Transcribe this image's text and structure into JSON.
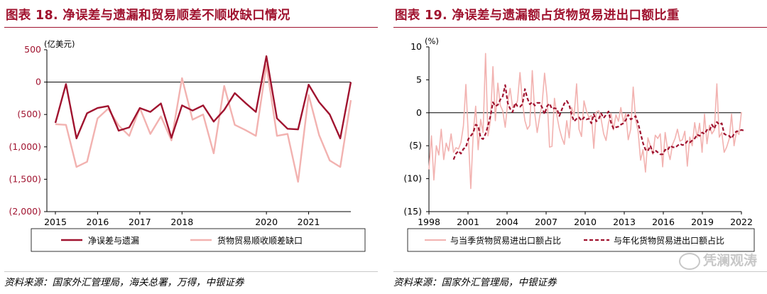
{
  "left": {
    "title": "图表 18. 净误差与遗漏和贸易顺差不顺收缺口情况",
    "source": "资料来源：国家外汇管理局，海关总署，万得，中银证券",
    "unit": "(亿美元)",
    "y_ticks": [
      "500",
      "0",
      "(500)",
      "(1,000)",
      "(1,500)",
      "(2,000)"
    ],
    "x_ticks": [
      "2015",
      "2016",
      "2017",
      "2018",
      "2020",
      "2021"
    ],
    "colors": {
      "series1": "#a0132f",
      "series2": "#f2b2b0",
      "axis_text": "#a0132f"
    }
  },
  "right": {
    "title": "图表 19. 净误差与遗漏额占货物贸易进出口额比重",
    "source": "资料来源：国家外汇管理局，中银证券",
    "unit": "(%)",
    "y_ticks": [
      "10",
      "5",
      "0",
      "(5)",
      "(10)",
      "(15)"
    ],
    "x_ticks": [
      "1998",
      "2001",
      "2004",
      "2007",
      "2010",
      "2013",
      "2016",
      "2019",
      "2022"
    ],
    "colors": {
      "series1": "#f2b2b0",
      "series2": "#a0132f"
    }
  },
  "watermark": "凭澜观涛",
  "chart_data": [
    {
      "type": "line",
      "ylim": [
        -2000,
        500
      ],
      "ylabel": "(亿美元)",
      "x": [
        "2015Q1",
        "2015Q2",
        "2015Q3",
        "2015Q4",
        "2016Q1",
        "2016Q2",
        "2016Q3",
        "2016Q4",
        "2017Q1",
        "2017Q2",
        "2017Q3",
        "2017Q4",
        "2018Q1",
        "2018Q2",
        "2018Q3",
        "2018Q4",
        "2019Q1",
        "2019Q2",
        "2019Q3",
        "2019Q4",
        "2020Q1",
        "2020Q2",
        "2020Q3",
        "2020Q4",
        "2021Q1",
        "2021Q2",
        "2021Q3",
        "2021Q4",
        "2022Q1"
      ],
      "series": [
        {
          "name": "净误差与遗漏",
          "values": [
            -630,
            -30,
            -870,
            -480,
            -400,
            -370,
            -750,
            -700,
            -400,
            -460,
            -330,
            -860,
            -360,
            -440,
            -360,
            -610,
            -430,
            -170,
            -320,
            -460,
            400,
            -560,
            -720,
            -730,
            -40,
            -310,
            -500,
            -870,
            0
          ]
        },
        {
          "name": "货物贸易顺收顺差缺口",
          "values": [
            -650,
            -660,
            -1310,
            -1230,
            -560,
            -410,
            -670,
            -830,
            -400,
            -800,
            -530,
            -900,
            60,
            -580,
            -500,
            -1100,
            -60,
            -660,
            -740,
            -830,
            270,
            -830,
            -800,
            -1540,
            -200,
            -820,
            -1210,
            -1310,
            -280
          ]
        }
      ]
    },
    {
      "type": "line",
      "ylim": [
        -15,
        10
      ],
      "ylabel": "(%)",
      "x_range": [
        1998,
        2022
      ],
      "series": [
        {
          "name": "与当季货物贸易进出口额占比",
          "values": [
            -8.6,
            -3.5,
            -10.2,
            -5.0,
            -6.4,
            -2.5,
            -7.1,
            -4.6,
            -5.8,
            -3.2,
            -6.0,
            -5.3,
            -5.5,
            -4.5,
            -2.0,
            4.3,
            -3.4,
            -11.5,
            -3.0,
            1.0,
            -5.6,
            -1.0,
            -3.0,
            9.0,
            -3.5,
            -1.2,
            7.0,
            -1.2,
            4.5,
            1.1,
            0.3,
            -2.2,
            1.6,
            3.7,
            0.8,
            0.9,
            1.8,
            6.1,
            1.6,
            -1.2,
            -2.5,
            -1.9,
            6.4,
            -0.1,
            -3.0,
            -0.6,
            1.4,
            6.0,
            2.4,
            -5.2,
            -5.1,
            2.2,
            -0.5,
            -2.4,
            -3.8,
            -4.8,
            -1.2,
            -3.8,
            0.8,
            -0.4,
            4.4,
            -2.5,
            -3.6,
            1.8,
            0.3,
            -0.7,
            -0.4,
            -5.4,
            0.1,
            0.3,
            -1.0,
            -3.2,
            -4.2,
            -1.5,
            -0.1,
            -2.6,
            -0.3,
            -1.3,
            0.8,
            -1.4,
            -0.1,
            -4.1,
            -2.5,
            3.9,
            -1.0,
            -2.8,
            -7.2,
            -5.6,
            -9.0,
            -3.8,
            -5.0,
            -6.3,
            -3.4,
            -3.9,
            -3.2,
            -8.2,
            -3.0,
            -5.6,
            -7.1,
            -4.8,
            -3.9,
            -2.5,
            -4.3,
            -4.1,
            -2.8,
            -8.1,
            -3.7,
            -5.0,
            -1.5,
            -3.8,
            -1.6,
            -6.0,
            -0.2,
            -4.7,
            -1.9,
            -3.2,
            -2.6,
            4.4,
            -3.7,
            -3.0,
            -6.0,
            -5.2,
            -4.0,
            -0.2,
            -5.0,
            -2.8,
            -3.3,
            0.1
          ]
        },
        {
          "name": "与年化货物贸易进出口额占比",
          "values": [
            null,
            null,
            null,
            null,
            null,
            null,
            null,
            null,
            null,
            null,
            -7.1,
            -6.2,
            -5.8,
            -6.2,
            -5.5,
            -5.2,
            -4.0,
            -3.5,
            -3.0,
            -1.8,
            -2.0,
            -3.8,
            -4.0,
            -3.2,
            -2.0,
            -0.5,
            1.6,
            1.0,
            1.2,
            2.0,
            2.5,
            4.2,
            1.5,
            0.6,
            0.1,
            1.5,
            1.0,
            0.9,
            1.3,
            3.6,
            2.2,
            1.3,
            1.6,
            1.1,
            1.5,
            1.5,
            0.8,
            -0.2,
            1.0,
            1.4,
            0.6,
            0.7,
            0.6,
            -0.5,
            0.5,
            1.4,
            1.8,
            1.2,
            -0.3,
            -1.3,
            -0.9,
            -0.7,
            -1.2,
            -0.7,
            -1.0,
            -0.9,
            -1.6,
            -0.2,
            -1.3,
            -0.9,
            -0.1,
            -0.8,
            -0.3,
            0.2,
            -1.5,
            -2.4,
            -2.2,
            -2.1,
            -1.8,
            -1.6,
            -1.1,
            -0.3,
            -1.0,
            -0.8,
            -0.5,
            -1.6,
            -3.1,
            -4.6,
            -5.6,
            -5.8,
            -5.0,
            -6.1,
            -5.7,
            -6.0,
            -6.3,
            -6.3,
            -5.6,
            -5.7,
            -5.0,
            -5.2,
            -5.3,
            -5.0,
            -4.7,
            -4.9,
            -4.8,
            -4.3,
            -4.5,
            -4.2,
            -3.9,
            -3.3,
            -3.5,
            -3.0,
            -3.2,
            -2.6,
            -2.7,
            -1.8,
            -2.4,
            -1.4,
            -1.8,
            -1.6,
            -3.2,
            -3.4,
            -3.5,
            -3.9,
            -3.2,
            -2.8,
            -2.8,
            -2.6,
            -2.7
          ]
        }
      ]
    }
  ]
}
